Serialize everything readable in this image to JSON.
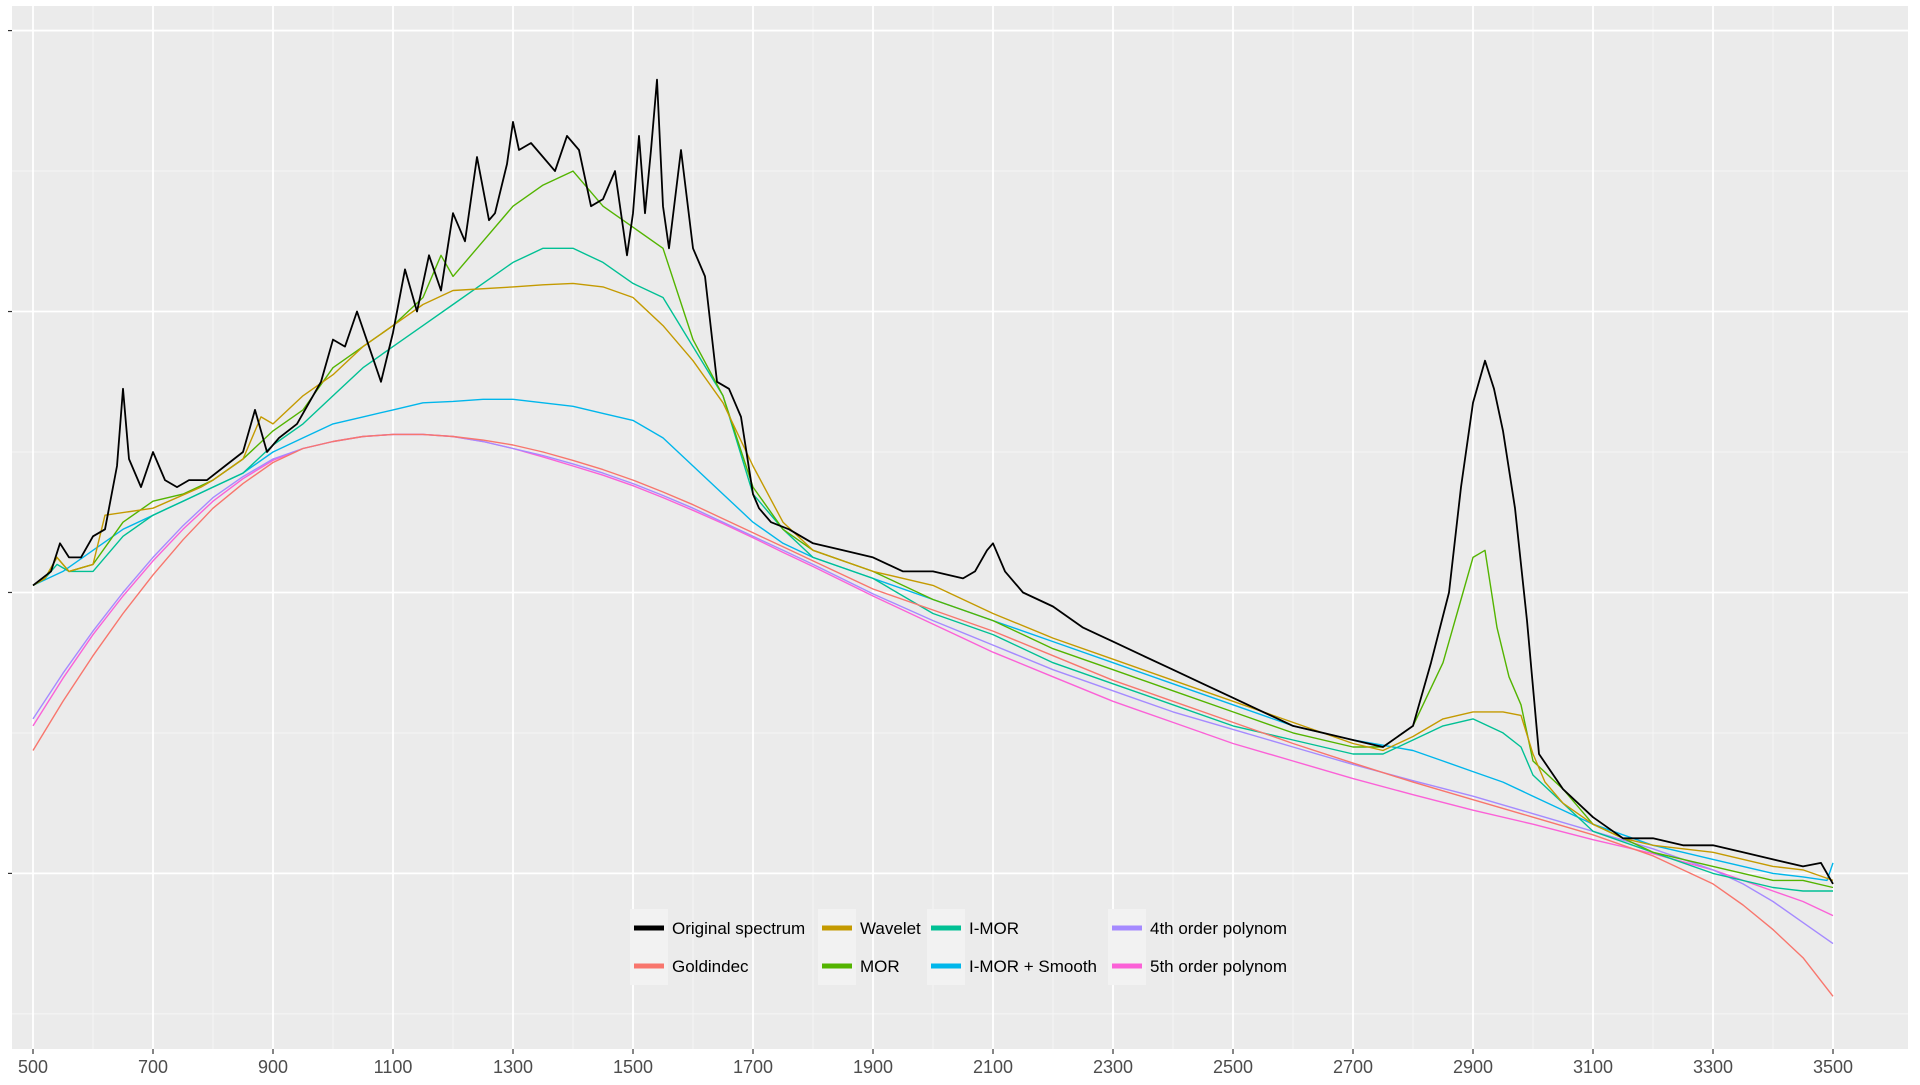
{
  "chart_data": {
    "type": "line",
    "title": "",
    "xlabel": "",
    "ylabel": "",
    "xlim": [
      465,
      3625
    ],
    "ylim": [
      -2.5,
      12.35
    ],
    "grid": true,
    "legend_position": "bottom-center",
    "x_ticks": [
      500,
      700,
      900,
      1100,
      1300,
      1500,
      1700,
      1900,
      2100,
      2300,
      2500,
      2700,
      2900,
      3100,
      3300,
      3500
    ],
    "x_tick_labels": [
      "500",
      "700",
      "900",
      "1100",
      "1300",
      "1500",
      "1700",
      "1900",
      "2100",
      "2300",
      "2500",
      "2700",
      "2900",
      "3100",
      "3300",
      "3500"
    ],
    "y_ticks": [
      0,
      4,
      8,
      12
    ],
    "series": [
      {
        "name": "Original spectrum",
        "color": "#000000",
        "x": [
          500,
          530,
          545,
          560,
          580,
          600,
          620,
          640,
          650,
          660,
          680,
          700,
          720,
          740,
          760,
          790,
          820,
          850,
          870,
          890,
          910,
          940,
          980,
          1000,
          1020,
          1040,
          1060,
          1080,
          1100,
          1120,
          1140,
          1160,
          1180,
          1200,
          1220,
          1240,
          1260,
          1270,
          1290,
          1300,
          1310,
          1330,
          1350,
          1370,
          1390,
          1410,
          1430,
          1450,
          1470,
          1490,
          1500,
          1510,
          1520,
          1530,
          1540,
          1550,
          1560,
          1580,
          1600,
          1620,
          1640,
          1660,
          1680,
          1700,
          1710,
          1730,
          1760,
          1800,
          1850,
          1900,
          1950,
          2000,
          2050,
          2070,
          2090,
          2100,
          2120,
          2150,
          2200,
          2250,
          2300,
          2350,
          2400,
          2450,
          2500,
          2550,
          2600,
          2650,
          2700,
          2750,
          2800,
          2830,
          2860,
          2880,
          2900,
          2920,
          2935,
          2950,
          2970,
          2990,
          3010,
          3050,
          3100,
          3150,
          3200,
          3250,
          3300,
          3350,
          3400,
          3450,
          3480,
          3500
        ],
        "y": [
          4.1,
          4.3,
          4.7,
          4.5,
          4.5,
          4.8,
          4.9,
          5.8,
          6.9,
          5.9,
          5.5,
          6.0,
          5.6,
          5.5,
          5.6,
          5.6,
          5.8,
          6.0,
          6.6,
          6.0,
          6.2,
          6.4,
          7.0,
          7.6,
          7.5,
          8.0,
          7.5,
          7.0,
          7.7,
          8.6,
          8.0,
          8.8,
          8.3,
          9.4,
          9.0,
          10.2,
          9.3,
          9.4,
          10.1,
          10.7,
          10.3,
          10.4,
          10.2,
          10.0,
          10.5,
          10.3,
          9.5,
          9.6,
          10.0,
          8.8,
          9.4,
          10.5,
          9.4,
          10.3,
          11.3,
          9.5,
          8.9,
          10.3,
          8.9,
          8.5,
          7.0,
          6.9,
          6.5,
          5.4,
          5.2,
          5.0,
          4.9,
          4.7,
          4.6,
          4.5,
          4.3,
          4.3,
          4.2,
          4.3,
          4.6,
          4.7,
          4.3,
          4.0,
          3.8,
          3.5,
          3.3,
          3.1,
          2.9,
          2.7,
          2.5,
          2.3,
          2.1,
          2.0,
          1.9,
          1.8,
          2.1,
          3.0,
          4.0,
          5.5,
          6.7,
          7.3,
          6.9,
          6.3,
          5.2,
          3.6,
          1.7,
          1.2,
          0.8,
          0.5,
          0.5,
          0.4,
          0.4,
          0.3,
          0.2,
          0.1,
          0.15,
          -0.15
        ]
      },
      {
        "name": "Goldindec",
        "color": "#F8766D",
        "x": [
          500,
          550,
          600,
          650,
          700,
          750,
          800,
          850,
          900,
          950,
          1000,
          1050,
          1100,
          1150,
          1200,
          1250,
          1300,
          1350,
          1400,
          1450,
          1500,
          1550,
          1600,
          1650,
          1700,
          1750,
          1800,
          1900,
          2000,
          2100,
          2200,
          2300,
          2400,
          2500,
          2600,
          2700,
          2800,
          2900,
          3000,
          3100,
          3200,
          3300,
          3350,
          3400,
          3450,
          3500
        ],
        "y": [
          1.75,
          2.45,
          3.1,
          3.7,
          4.25,
          4.75,
          5.2,
          5.55,
          5.85,
          6.05,
          6.15,
          6.22,
          6.25,
          6.25,
          6.22,
          6.17,
          6.1,
          6.0,
          5.88,
          5.75,
          5.6,
          5.43,
          5.25,
          5.05,
          4.85,
          4.65,
          4.45,
          4.05,
          3.75,
          3.45,
          3.1,
          2.75,
          2.45,
          2.15,
          1.85,
          1.57,
          1.3,
          1.05,
          0.8,
          0.55,
          0.25,
          -0.15,
          -0.45,
          -0.8,
          -1.2,
          -1.75
        ]
      },
      {
        "name": "Wavelet",
        "color": "#C49A00",
        "x": [
          500,
          520,
          540,
          560,
          600,
          620,
          700,
          780,
          800,
          850,
          880,
          900,
          950,
          1000,
          1050,
          1100,
          1150,
          1200,
          1300,
          1350,
          1400,
          1450,
          1500,
          1550,
          1600,
          1650,
          1700,
          1750,
          1800,
          1900,
          2000,
          2100,
          2200,
          2300,
          2400,
          2500,
          2600,
          2700,
          2750,
          2800,
          2850,
          2900,
          2950,
          2980,
          3000,
          3020,
          3050,
          3100,
          3150,
          3200,
          3300,
          3400,
          3450,
          3500
        ],
        "y": [
          4.1,
          4.2,
          4.5,
          4.3,
          4.4,
          5.1,
          5.2,
          5.5,
          5.6,
          5.9,
          6.5,
          6.4,
          6.8,
          7.1,
          7.5,
          7.8,
          8.1,
          8.3,
          8.35,
          8.38,
          8.4,
          8.35,
          8.2,
          7.8,
          7.3,
          6.7,
          5.8,
          5.0,
          4.6,
          4.3,
          4.1,
          3.7,
          3.35,
          3.05,
          2.75,
          2.45,
          2.15,
          1.85,
          1.75,
          1.95,
          2.2,
          2.3,
          2.3,
          2.25,
          1.7,
          1.3,
          1.0,
          0.7,
          0.5,
          0.4,
          0.3,
          0.1,
          0.05,
          -0.1
        ]
      },
      {
        "name": "MOR",
        "color": "#53B400",
        "x": [
          500,
          520,
          540,
          560,
          600,
          650,
          700,
          750,
          800,
          850,
          900,
          950,
          1000,
          1050,
          1100,
          1150,
          1180,
          1200,
          1250,
          1300,
          1350,
          1400,
          1450,
          1500,
          1550,
          1600,
          1650,
          1700,
          1750,
          1800,
          1900,
          2000,
          2100,
          2200,
          2300,
          2400,
          2500,
          2600,
          2700,
          2750,
          2800,
          2850,
          2880,
          2900,
          2920,
          2940,
          2960,
          2980,
          3000,
          3050,
          3100,
          3200,
          3300,
          3400,
          3450,
          3500
        ],
        "y": [
          4.1,
          4.2,
          4.5,
          4.3,
          4.4,
          5.0,
          5.3,
          5.4,
          5.6,
          5.9,
          6.3,
          6.6,
          7.2,
          7.5,
          7.8,
          8.2,
          8.8,
          8.5,
          9.0,
          9.5,
          9.8,
          10.0,
          9.5,
          9.2,
          8.9,
          7.6,
          6.8,
          5.5,
          4.9,
          4.6,
          4.3,
          3.9,
          3.6,
          3.2,
          2.9,
          2.6,
          2.3,
          2.0,
          1.8,
          1.8,
          2.1,
          3.0,
          3.9,
          4.5,
          4.6,
          3.5,
          2.8,
          2.4,
          1.6,
          1.2,
          0.7,
          0.3,
          0.1,
          -0.1,
          -0.1,
          -0.2
        ]
      },
      {
        "name": "I-MOR",
        "color": "#00C094",
        "x": [
          500,
          520,
          540,
          560,
          600,
          650,
          700,
          750,
          800,
          850,
          900,
          950,
          1000,
          1050,
          1100,
          1150,
          1200,
          1250,
          1300,
          1350,
          1400,
          1450,
          1500,
          1550,
          1600,
          1650,
          1700,
          1750,
          1800,
          1900,
          2000,
          2100,
          2200,
          2300,
          2400,
          2500,
          2600,
          2700,
          2750,
          2800,
          2850,
          2900,
          2950,
          2980,
          3000,
          3050,
          3100,
          3200,
          3300,
          3400,
          3450,
          3500
        ],
        "y": [
          4.1,
          4.2,
          4.4,
          4.3,
          4.3,
          4.8,
          5.1,
          5.3,
          5.5,
          5.7,
          6.1,
          6.4,
          6.8,
          7.2,
          7.5,
          7.8,
          8.1,
          8.4,
          8.7,
          8.9,
          8.9,
          8.7,
          8.4,
          8.2,
          7.5,
          6.8,
          5.4,
          4.9,
          4.5,
          4.2,
          3.7,
          3.4,
          3.0,
          2.7,
          2.4,
          2.1,
          1.9,
          1.7,
          1.7,
          1.9,
          2.1,
          2.2,
          2.0,
          1.8,
          1.4,
          1.0,
          0.6,
          0.3,
          0.0,
          -0.2,
          -0.25,
          -0.25
        ]
      },
      {
        "name": "I-MOR + Smooth",
        "color": "#00B6EB",
        "x": [
          500,
          550,
          600,
          650,
          700,
          750,
          800,
          850,
          900,
          950,
          1000,
          1050,
          1100,
          1150,
          1200,
          1250,
          1300,
          1350,
          1400,
          1450,
          1500,
          1550,
          1600,
          1650,
          1700,
          1750,
          1800,
          1900,
          2000,
          2100,
          2200,
          2300,
          2400,
          2500,
          2600,
          2700,
          2800,
          2850,
          2900,
          2950,
          3000,
          3050,
          3100,
          3150,
          3200,
          3250,
          3300,
          3350,
          3400,
          3450,
          3490,
          3500
        ],
        "y": [
          4.1,
          4.3,
          4.6,
          4.9,
          5.1,
          5.3,
          5.5,
          5.7,
          6.0,
          6.2,
          6.4,
          6.5,
          6.6,
          6.7,
          6.72,
          6.75,
          6.75,
          6.7,
          6.65,
          6.55,
          6.45,
          6.2,
          5.8,
          5.4,
          5.0,
          4.7,
          4.5,
          4.2,
          3.9,
          3.6,
          3.3,
          3.0,
          2.7,
          2.4,
          2.1,
          1.9,
          1.75,
          1.6,
          1.45,
          1.3,
          1.1,
          0.9,
          0.7,
          0.55,
          0.4,
          0.3,
          0.2,
          0.1,
          0.0,
          -0.05,
          -0.1,
          0.15
        ]
      },
      {
        "name": "4th order polynom",
        "color": "#A58AFF",
        "x": [
          500,
          550,
          600,
          650,
          700,
          750,
          800,
          850,
          900,
          950,
          1000,
          1050,
          1100,
          1150,
          1200,
          1250,
          1300,
          1350,
          1400,
          1450,
          1500,
          1550,
          1600,
          1650,
          1700,
          1750,
          1800,
          1900,
          2000,
          2100,
          2200,
          2300,
          2400,
          2500,
          2600,
          2700,
          2800,
          2900,
          3000,
          3100,
          3200,
          3300,
          3350,
          3400,
          3450,
          3500
        ],
        "y": [
          2.2,
          2.85,
          3.45,
          4.0,
          4.5,
          4.95,
          5.35,
          5.65,
          5.9,
          6.05,
          6.15,
          6.22,
          6.25,
          6.25,
          6.22,
          6.15,
          6.05,
          5.95,
          5.83,
          5.7,
          5.55,
          5.38,
          5.2,
          5.0,
          4.8,
          4.6,
          4.4,
          3.98,
          3.6,
          3.25,
          2.9,
          2.6,
          2.3,
          2.05,
          1.8,
          1.55,
          1.32,
          1.1,
          0.85,
          0.6,
          0.35,
          0.05,
          -0.15,
          -0.4,
          -0.7,
          -1.0
        ]
      },
      {
        "name": "5th order polynom",
        "color": "#FB61D7",
        "x": [
          500,
          550,
          600,
          650,
          700,
          750,
          800,
          850,
          900,
          950,
          1000,
          1050,
          1100,
          1150,
          1200,
          1250,
          1300,
          1350,
          1400,
          1450,
          1500,
          1550,
          1600,
          1650,
          1700,
          1750,
          1800,
          1900,
          2000,
          2100,
          2200,
          2300,
          2400,
          2500,
          2600,
          2700,
          2800,
          2900,
          3000,
          3100,
          3200,
          3300,
          3350,
          3400,
          3450,
          3500
        ],
        "y": [
          2.1,
          2.78,
          3.4,
          3.95,
          4.45,
          4.9,
          5.3,
          5.62,
          5.88,
          6.05,
          6.15,
          6.22,
          6.25,
          6.25,
          6.22,
          6.15,
          6.05,
          5.93,
          5.8,
          5.67,
          5.52,
          5.35,
          5.17,
          4.98,
          4.78,
          4.57,
          4.37,
          3.95,
          3.55,
          3.15,
          2.8,
          2.45,
          2.15,
          1.85,
          1.6,
          1.35,
          1.12,
          0.9,
          0.7,
          0.48,
          0.28,
          0.05,
          -0.1,
          -0.25,
          -0.4,
          -0.6
        ]
      }
    ],
    "legend": {
      "rows": [
        [
          "Original spectrum",
          "Wavelet",
          "I-MOR",
          "4th order polynom"
        ],
        [
          "Goldindec",
          "MOR",
          "I-MOR + Smooth",
          "5th order polynom"
        ]
      ]
    }
  }
}
